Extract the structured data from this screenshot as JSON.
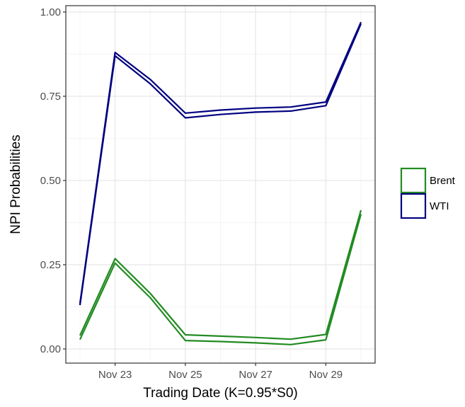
{
  "chart_data": {
    "type": "line",
    "title": "",
    "xlabel": "Trading Date (K=0.95*S0)",
    "ylabel": "NPI Probabilities",
    "x_tick_labels": [
      {
        "date": "2020-11-23",
        "label": "Nov 23"
      },
      {
        "date": "2020-11-25",
        "label": "Nov 25"
      },
      {
        "date": "2020-11-27",
        "label": "Nov 27"
      },
      {
        "date": "2020-11-29",
        "label": "Nov 29"
      }
    ],
    "y_ticks": [
      0.0,
      0.25,
      0.5,
      0.75,
      1.0
    ],
    "y_tick_labels": [
      "0.00",
      "0.25",
      "0.50",
      "0.75",
      "1.00"
    ],
    "xlim": [
      "2020-11-21",
      "2020-11-30"
    ],
    "ylim": [
      0.0,
      1.0
    ],
    "grid": true,
    "legend_position": "right",
    "x": [
      "2020-11-22",
      "2020-11-23",
      "2020-11-24",
      "2020-11-25",
      "2020-11-26",
      "2020-11-27",
      "2020-11-28",
      "2020-11-29",
      "2020-11-30"
    ],
    "series": [
      {
        "name": "Brent",
        "color": "#228b22",
        "upper": [
          0.04,
          0.268,
          0.165,
          0.042,
          0.038,
          0.034,
          0.029,
          0.043,
          0.412
        ],
        "lower": [
          0.028,
          0.255,
          0.152,
          0.025,
          0.022,
          0.018,
          0.013,
          0.027,
          0.4
        ]
      },
      {
        "name": "WTI",
        "color": "#000080",
        "upper": [
          0.135,
          0.88,
          0.8,
          0.7,
          0.709,
          0.715,
          0.718,
          0.733,
          0.97
        ],
        "lower": [
          0.13,
          0.87,
          0.787,
          0.686,
          0.696,
          0.703,
          0.706,
          0.722,
          0.965
        ]
      }
    ]
  }
}
